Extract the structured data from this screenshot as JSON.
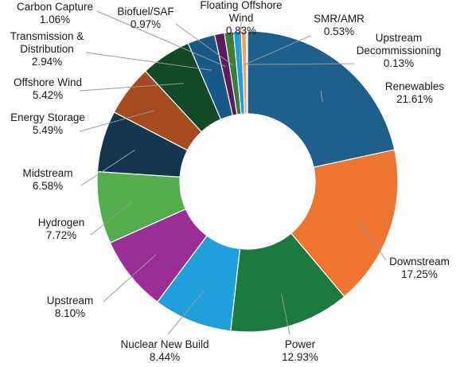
{
  "chart_data": {
    "type": "pie",
    "donut": true,
    "title": "",
    "legend": "none",
    "slices": [
      {
        "label": "Renewables",
        "percent": "21.61%",
        "value": 21.61,
        "color": "#1f5f8b"
      },
      {
        "label": "Downstream",
        "percent": "17.25%",
        "value": 17.25,
        "color": "#ee7430"
      },
      {
        "label": "Power",
        "percent": "12.93%",
        "value": 12.93,
        "color": "#1b7a3e"
      },
      {
        "label": "Nuclear New Build",
        "percent": "8.44%",
        "value": 8.44,
        "color": "#20a0db"
      },
      {
        "label": "Upstream",
        "percent": "8.10%",
        "value": 8.1,
        "color": "#9b2d96"
      },
      {
        "label": "Hydrogen",
        "percent": "7.72%",
        "value": 7.72,
        "color": "#52ad4a"
      },
      {
        "label": "Midstream",
        "percent": "6.58%",
        "value": 6.58,
        "color": "#11364d"
      },
      {
        "label": "Energy Storage",
        "percent": "5.49%",
        "value": 5.49,
        "color": "#a64a22"
      },
      {
        "label": "Offshore Wind",
        "percent": "5.42%",
        "value": 5.42,
        "color": "#124a27"
      },
      {
        "label": "Transmission & Distribution",
        "percent": "2.94%",
        "value": 2.94,
        "color": "#185a86"
      },
      {
        "label": "Carbon Capture",
        "percent": "1.06%",
        "value": 1.06,
        "color": "#5c1e5a"
      },
      {
        "label": "Biofuel/SAF",
        "percent": "0.97%",
        "value": 0.97,
        "color": "#3f7c3a"
      },
      {
        "label": "Floating Offshore Wind",
        "percent": "0.83%",
        "value": 0.83,
        "color": "#1b9fd8"
      },
      {
        "label": "SMR/AMR",
        "percent": "0.53%",
        "value": 0.53,
        "color": "#f3a062"
      },
      {
        "label": "Upstream Decommissioning",
        "percent": "0.13%",
        "value": 0.13,
        "color": "#c8c8c8"
      }
    ]
  }
}
